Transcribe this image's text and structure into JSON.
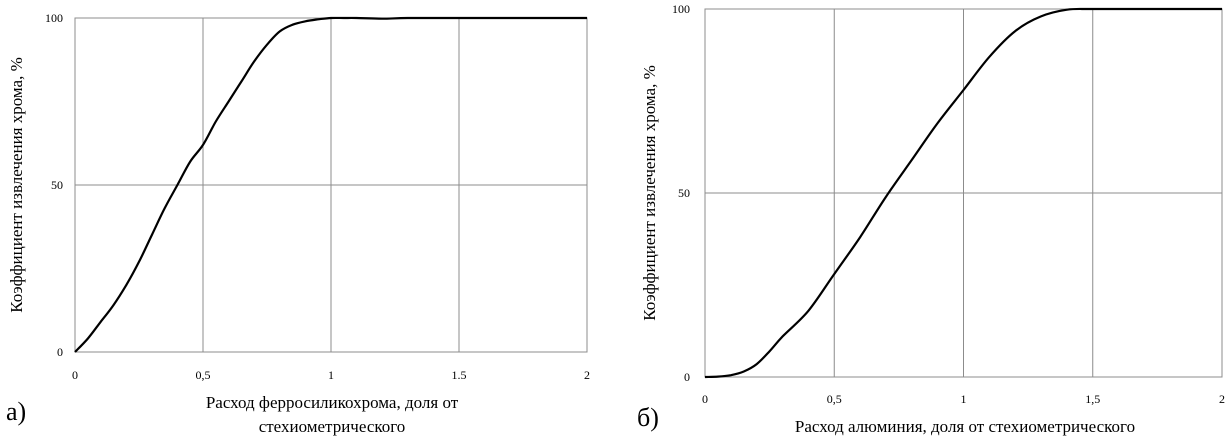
{
  "chart_data": [
    {
      "type": "line",
      "panel_label": "а)",
      "xlabel_lines": [
        "Расход ферросиликохрома, доля от",
        "стехиометрического"
      ],
      "ylabel": "Коэффициент извлечения хрома, %",
      "xlim": [
        0,
        2
      ],
      "ylim": [
        0,
        100
      ],
      "x_ticks": [
        0,
        0.5,
        1,
        1.5,
        2
      ],
      "x_tick_labels": [
        "0",
        "0,5",
        "1",
        "1.5",
        "2"
      ],
      "y_ticks": [
        0,
        50,
        100
      ],
      "y_tick_labels": [
        "0",
        "50",
        "100"
      ],
      "grid": true,
      "series": [
        {
          "x": [
            0,
            0.05,
            0.1,
            0.15,
            0.2,
            0.25,
            0.3,
            0.35,
            0.4,
            0.45,
            0.5,
            0.55,
            0.6,
            0.65,
            0.7,
            0.75,
            0.8,
            0.85,
            0.9,
            0.95,
            1.0,
            1.05,
            1.1,
            1.2,
            1.3,
            1.5,
            1.75,
            2.0
          ],
          "y": [
            0,
            4,
            9,
            14,
            20,
            27,
            35,
            43,
            50,
            57,
            62,
            69,
            75,
            81,
            87,
            92,
            96,
            98,
            99,
            99.6,
            100,
            100,
            100,
            99.8,
            100,
            100,
            100,
            100
          ]
        }
      ]
    },
    {
      "type": "line",
      "panel_label": "б)",
      "xlabel_lines": [
        "Расход алюминия, доля от стехиометрического"
      ],
      "ylabel": "Коэффициент извлечения хрома, %",
      "xlim": [
        0,
        2
      ],
      "ylim": [
        0,
        100
      ],
      "x_ticks": [
        0,
        0.5,
        1,
        1.5,
        2
      ],
      "x_tick_labels": [
        "0",
        "0,5",
        "1",
        "1,5",
        "2"
      ],
      "y_ticks": [
        0,
        50,
        100
      ],
      "y_tick_labels": [
        "0",
        "50",
        "100"
      ],
      "grid": true,
      "series": [
        {
          "x": [
            0,
            0.05,
            0.1,
            0.15,
            0.2,
            0.25,
            0.3,
            0.4,
            0.5,
            0.6,
            0.7,
            0.8,
            0.9,
            1.0,
            1.1,
            1.2,
            1.3,
            1.4,
            1.5,
            1.75,
            2.0
          ],
          "y": [
            0,
            0.1,
            0.5,
            1.5,
            3.5,
            7,
            11,
            18,
            28,
            38,
            49,
            59,
            69,
            78,
            87,
            94,
            98,
            99.8,
            100,
            100,
            100
          ]
        }
      ]
    }
  ]
}
